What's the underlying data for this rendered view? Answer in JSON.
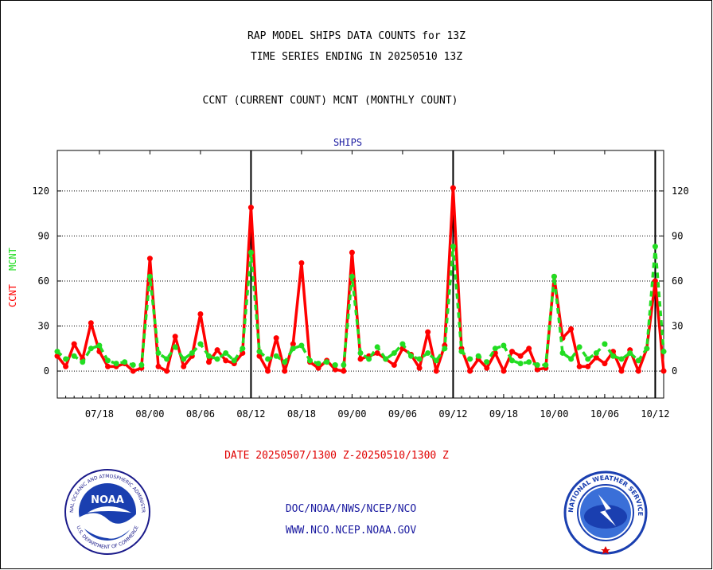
{
  "header": {
    "title_line1": "RAP MODEL SHIPS DATA COUNTS for 13Z",
    "title_line2": "TIME SERIES ENDING IN 20250510 13Z",
    "subtitle": "CCNT (CURRENT COUNT) MCNT (MONTHLY COUNT)"
  },
  "footer": {
    "date_range": "DATE 20250507/1300 Z-20250510/1300 Z",
    "link1": "DOC/NOAA/NWS/NCEP/NCO",
    "link2": "WWW.NCO.NCEP.NOAA.GOV"
  },
  "logos": {
    "noaa_text": "NOAA",
    "noaa_ring_text": "NATIONAL OCEANIC AND ATMOSPHERIC ADMINISTRATION",
    "noaa_bottom_text": "U.S. DEPARTMENT OF COMMERCE",
    "nws_ring_text": "NATIONAL WEATHER SERVICE"
  },
  "colors": {
    "ccnt": "#ff0000",
    "mcnt": "#22dd22",
    "panel_title": "#1a1aa0",
    "grid": "#000000"
  },
  "chart_data": {
    "type": "line",
    "title": "SHIPS",
    "ylabel_left_ccnt": "CCNT",
    "ylabel_left_mcnt": "MCNT",
    "ylim": [
      -18,
      147
    ],
    "yticks": [
      0,
      30,
      60,
      90,
      120
    ],
    "grid": "horizontal dotted",
    "xtick_labels": [
      "07/18",
      "08/00",
      "08/06",
      "08/12",
      "08/18",
      "09/00",
      "09/06",
      "09/12",
      "09/18",
      "10/00",
      "10/06",
      "10/12"
    ],
    "day_boundaries": [
      "08/12",
      "09/12",
      "10/12"
    ],
    "x_range_hours": [
      0,
      72
    ],
    "series": [
      {
        "name": "CCNT",
        "x": [
          0,
          1,
          2,
          3,
          4,
          5,
          6,
          7,
          8,
          9,
          10,
          11,
          12,
          13,
          14,
          15,
          16,
          17,
          18,
          19,
          20,
          21,
          22,
          23,
          24,
          25,
          26,
          27,
          28,
          29,
          30,
          31,
          32,
          33,
          34,
          35,
          36,
          37,
          38,
          39,
          40,
          41,
          42,
          43,
          44,
          45,
          46,
          47,
          48,
          49,
          50,
          51,
          52,
          53,
          54,
          55,
          56,
          57,
          58,
          59,
          60,
          61,
          62,
          63,
          64,
          65,
          66,
          67,
          68,
          69,
          70,
          71,
          72
        ],
        "values": [
          10,
          3,
          18,
          8,
          32,
          13,
          3,
          3,
          5,
          0,
          2,
          75,
          3,
          0,
          23,
          3,
          10,
          38,
          6,
          14,
          7,
          5,
          12,
          109,
          10,
          0,
          22,
          0,
          18,
          72,
          6,
          2,
          7,
          1,
          0,
          79,
          8,
          10,
          12,
          8,
          4,
          15,
          11,
          2,
          26,
          0,
          17,
          122,
          15,
          0,
          8,
          2,
          12,
          0,
          13,
          10,
          15,
          1,
          2,
          63,
          22,
          28,
          3,
          3,
          9,
          5,
          13,
          0,
          14,
          0,
          15,
          60,
          0
        ]
      },
      {
        "name": "MCNT",
        "x": [
          0,
          1,
          2,
          3,
          4,
          5,
          6,
          7,
          8,
          9,
          10,
          11,
          12,
          13,
          14,
          15,
          16,
          17,
          18,
          19,
          20,
          21,
          22,
          23,
          24,
          25,
          26,
          27,
          28,
          29,
          30,
          31,
          32,
          33,
          34,
          35,
          36,
          37,
          38,
          39,
          40,
          41,
          42,
          43,
          44,
          45,
          46,
          47,
          48,
          49,
          50,
          51,
          52,
          53,
          54,
          55,
          56,
          57,
          58,
          59,
          60,
          61,
          62,
          63,
          64,
          65,
          66,
          67,
          68,
          69,
          70,
          71,
          72
        ],
        "values": [
          13,
          8,
          10,
          6,
          15,
          17,
          7,
          5,
          6,
          4,
          4,
          63,
          12,
          8,
          16,
          8,
          12,
          18,
          10,
          8,
          12,
          7,
          15,
          79,
          13,
          8,
          10,
          6,
          15,
          17,
          7,
          5,
          6,
          4,
          4,
          63,
          12,
          8,
          16,
          8,
          12,
          18,
          10,
          8,
          12,
          7,
          15,
          83,
          13,
          8,
          10,
          6,
          15,
          17,
          7,
          5,
          6,
          4,
          4,
          63,
          12,
          8,
          16,
          8,
          12,
          18,
          10,
          8,
          12,
          7,
          15,
          83,
          13
        ]
      }
    ]
  }
}
